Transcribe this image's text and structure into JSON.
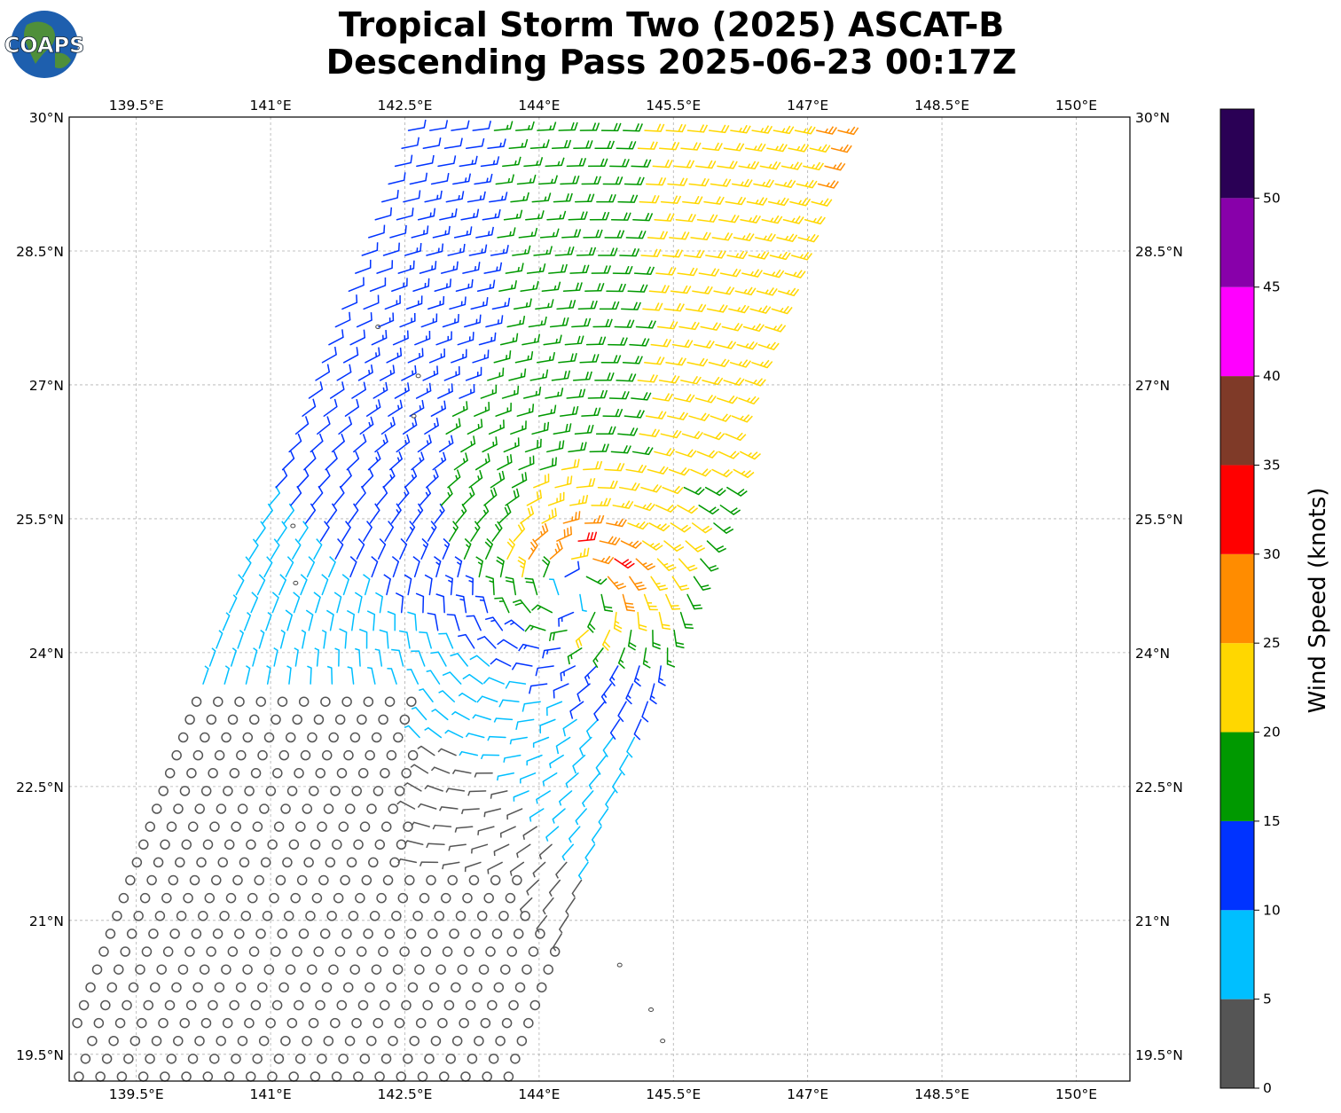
{
  "title_line1": "Tropical Storm Two (2025) ASCAT-B",
  "title_line2": "Descending Pass 2025-06-23 00:17Z",
  "logo_text": "COAPS",
  "map": {
    "lon_range": [
      138.75,
      150.6
    ],
    "lat_range": [
      19.2,
      30.0
    ],
    "lon_ticks": [
      {
        "value": 139.5,
        "label": "139.5°E"
      },
      {
        "value": 141.0,
        "label": "141°E"
      },
      {
        "value": 142.5,
        "label": "142.5°E"
      },
      {
        "value": 144.0,
        "label": "144°E"
      },
      {
        "value": 145.5,
        "label": "145.5°E"
      },
      {
        "value": 147.0,
        "label": "147°E"
      },
      {
        "value": 148.5,
        "label": "148.5°E"
      },
      {
        "value": 150.0,
        "label": "150°E"
      }
    ],
    "lat_ticks": [
      {
        "value": 30.0,
        "label": "30°N"
      },
      {
        "value": 28.5,
        "label": "28.5°N"
      },
      {
        "value": 27.0,
        "label": "27°N"
      },
      {
        "value": 25.5,
        "label": "25.5°N"
      },
      {
        "value": 24.0,
        "label": "24°N"
      },
      {
        "value": 22.5,
        "label": "22.5°N"
      },
      {
        "value": 21.0,
        "label": "21°N"
      },
      {
        "value": 19.5,
        "label": "19.5°N"
      }
    ],
    "gridlines": true,
    "storm_center": {
      "lon": 144.4,
      "lat": 24.75
    },
    "islands": [
      {
        "lon": 142.2,
        "lat": 27.65
      },
      {
        "lon": 142.65,
        "lat": 27.1
      },
      {
        "lon": 142.6,
        "lat": 26.65
      },
      {
        "lon": 141.25,
        "lat": 25.42
      },
      {
        "lon": 141.28,
        "lat": 24.78
      },
      {
        "lon": 144.9,
        "lat": 20.5
      },
      {
        "lon": 145.25,
        "lat": 20.0
      },
      {
        "lon": 145.38,
        "lat": 19.65
      }
    ]
  },
  "colorbar": {
    "title": "Wind Speed (knots)",
    "levels": [
      {
        "min": 0,
        "max": 5,
        "color": "#555555"
      },
      {
        "min": 5,
        "max": 10,
        "color": "#00bfff"
      },
      {
        "min": 10,
        "max": 15,
        "color": "#0033ff"
      },
      {
        "min": 15,
        "max": 20,
        "color": "#009900"
      },
      {
        "min": 20,
        "max": 25,
        "color": "#ffd700"
      },
      {
        "min": 25,
        "max": 30,
        "color": "#ff8c00"
      },
      {
        "min": 30,
        "max": 35,
        "color": "#ff0000"
      },
      {
        "min": 35,
        "max": 40,
        "color": "#7f3a28"
      },
      {
        "min": 40,
        "max": 45,
        "color": "#ff00ff"
      },
      {
        "min": 45,
        "max": 50,
        "color": "#8800aa"
      },
      {
        "min": 50,
        "max": 55,
        "color": "#2a0055"
      }
    ],
    "tick_labels": [
      "0",
      "5",
      "10",
      "15",
      "20",
      "25",
      "30",
      "35",
      "40",
      "45",
      "50"
    ]
  }
}
